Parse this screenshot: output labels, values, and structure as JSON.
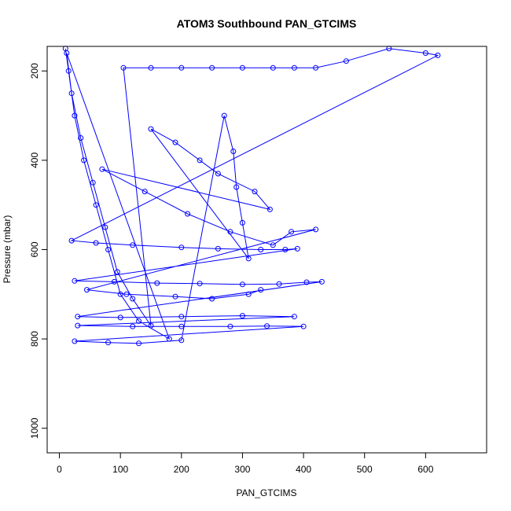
{
  "chart_data": {
    "type": "scatter",
    "title": "ATOM3 Southbound PAN_GTCIMS",
    "xlabel": "PAN_GTCIMS",
    "ylabel": "Pressure (mbar)",
    "xlim": [
      -20,
      700
    ],
    "ylim": [
      1055,
      145
    ],
    "y_reversed": true,
    "x_ticks": [
      0,
      100,
      200,
      300,
      400,
      500,
      600
    ],
    "y_ticks": [
      200,
      400,
      600,
      800,
      1000
    ],
    "grid": false,
    "legend": "none",
    "style": {
      "marker": "open-circle",
      "connected": true
    },
    "colors": {
      "series": "#0000ff",
      "axis": "#000000"
    },
    "series": [
      {
        "values": [
          [
            10,
            150
          ],
          [
            15,
            200
          ],
          [
            25,
            300
          ],
          [
            40,
            400
          ],
          [
            60,
            500
          ],
          [
            80,
            600
          ],
          [
            100,
            700
          ],
          [
            130,
            760
          ],
          [
            180,
            800
          ],
          [
            12,
            160
          ],
          [
            20,
            250
          ],
          [
            35,
            350
          ],
          [
            55,
            450
          ],
          [
            75,
            550
          ],
          [
            95,
            650
          ],
          [
            120,
            710
          ],
          [
            150,
            770
          ],
          [
            105,
            193
          ],
          [
            150,
            193
          ],
          [
            200,
            193
          ],
          [
            250,
            193
          ],
          [
            300,
            193
          ],
          [
            350,
            193
          ],
          [
            385,
            193
          ],
          [
            420,
            193
          ],
          [
            470,
            178
          ],
          [
            540,
            150
          ],
          [
            600,
            160
          ],
          [
            620,
            165
          ],
          [
            20,
            580
          ],
          [
            60,
            585
          ],
          [
            120,
            590
          ],
          [
            200,
            595
          ],
          [
            260,
            598
          ],
          [
            330,
            600
          ],
          [
            370,
            600
          ],
          [
            390,
            598
          ],
          [
            25,
            670
          ],
          [
            90,
            672
          ],
          [
            160,
            675
          ],
          [
            230,
            676
          ],
          [
            300,
            678
          ],
          [
            360,
            677
          ],
          [
            405,
            673
          ],
          [
            430,
            672
          ],
          [
            30,
            750
          ],
          [
            100,
            752
          ],
          [
            200,
            750
          ],
          [
            300,
            748
          ],
          [
            385,
            750
          ],
          [
            30,
            770
          ],
          [
            120,
            772
          ],
          [
            200,
            772
          ],
          [
            280,
            772
          ],
          [
            340,
            771
          ],
          [
            400,
            772
          ],
          [
            25,
            805
          ],
          [
            80,
            808
          ],
          [
            130,
            810
          ],
          [
            200,
            803
          ],
          [
            270,
            300
          ],
          [
            285,
            380
          ],
          [
            290,
            460
          ],
          [
            300,
            540
          ],
          [
            310,
            620
          ],
          [
            150,
            330
          ],
          [
            190,
            360
          ],
          [
            230,
            400
          ],
          [
            260,
            430
          ],
          [
            320,
            470
          ],
          [
            345,
            510
          ],
          [
            70,
            420
          ],
          [
            140,
            470
          ],
          [
            210,
            520
          ],
          [
            280,
            560
          ],
          [
            350,
            590
          ],
          [
            380,
            560
          ],
          [
            420,
            555
          ],
          [
            45,
            690
          ],
          [
            110,
            700
          ],
          [
            190,
            705
          ],
          [
            250,
            710
          ],
          [
            310,
            700
          ],
          [
            330,
            690
          ]
        ]
      }
    ]
  }
}
